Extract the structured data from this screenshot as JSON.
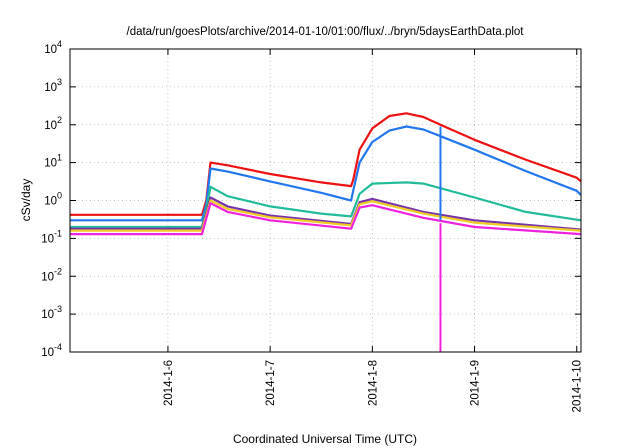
{
  "chart_data": {
    "type": "line",
    "title": "/data/run/goesPlots/archive/2014-01-10/01:00/flux/../bryn/5daysEarthData.plot",
    "xlabel": "Coordinated Universal Time (UTC)",
    "ylabel": "cSv/day",
    "y_scale": "log",
    "ylim": [
      0.0001,
      10000
    ],
    "y_ticks": [
      {
        "base": "10",
        "exp": "-4",
        "value": 0.0001
      },
      {
        "base": "10",
        "exp": "-3",
        "value": 0.001
      },
      {
        "base": "10",
        "exp": "-2",
        "value": 0.01
      },
      {
        "base": "10",
        "exp": "-1",
        "value": 0.1
      },
      {
        "base": "10",
        "exp": "0",
        "value": 1
      },
      {
        "base": "10",
        "exp": "1",
        "value": 10
      },
      {
        "base": "10",
        "exp": "2",
        "value": 100
      },
      {
        "base": "10",
        "exp": "3",
        "value": 1000
      },
      {
        "base": "10",
        "exp": "4",
        "value": 10000
      }
    ],
    "xlim": [
      "2014-01-05 01:00",
      "2014-01-10 01:00"
    ],
    "x_ticks": [
      {
        "label": "2014-1-6",
        "t": "2014-01-06 00:00"
      },
      {
        "label": "2014-1-7",
        "t": "2014-01-07 00:00"
      },
      {
        "label": "2014-1-8",
        "t": "2014-01-08 00:00"
      },
      {
        "label": "2014-1-9",
        "t": "2014-01-09 00:00"
      },
      {
        "label": "2014-1-10",
        "t": "2014-01-10 00:00"
      }
    ],
    "grid": true,
    "legend": "none",
    "series": [
      {
        "color": "#ee1111",
        "points": [
          [
            "2014-01-05 01:00",
            0.42
          ],
          [
            "2014-01-06 08:00",
            0.42
          ],
          [
            "2014-01-06 09:00",
            1.0
          ],
          [
            "2014-01-06 10:00",
            10.0
          ],
          [
            "2014-01-06 14:00",
            8.5
          ],
          [
            "2014-01-07 00:00",
            5.0
          ],
          [
            "2014-01-07 12:00",
            3.0
          ],
          [
            "2014-01-07 19:00",
            2.4
          ],
          [
            "2014-01-07 19:30",
            3.5
          ],
          [
            "2014-01-07 21:00",
            22.0
          ],
          [
            "2014-01-08 00:00",
            80.0
          ],
          [
            "2014-01-08 04:00",
            170.0
          ],
          [
            "2014-01-08 08:00",
            200.0
          ],
          [
            "2014-01-08 12:00",
            160.0
          ],
          [
            "2014-01-08 16:00",
            100.0
          ],
          [
            "2014-01-09 00:00",
            40.0
          ],
          [
            "2014-01-09 12:00",
            12.0
          ],
          [
            "2014-01-10 00:00",
            4.0
          ],
          [
            "2014-01-10 01:00",
            3.2
          ]
        ]
      },
      {
        "color": "#2277ee",
        "points": [
          [
            "2014-01-05 01:00",
            0.3
          ],
          [
            "2014-01-06 08:00",
            0.3
          ],
          [
            "2014-01-06 09:00",
            0.8
          ],
          [
            "2014-01-06 10:00",
            7.0
          ],
          [
            "2014-01-06 14:00",
            5.8
          ],
          [
            "2014-01-07 00:00",
            3.2
          ],
          [
            "2014-01-07 12:00",
            1.6
          ],
          [
            "2014-01-07 19:00",
            1.0
          ],
          [
            "2014-01-07 19:30",
            1.8
          ],
          [
            "2014-01-07 21:00",
            10.0
          ],
          [
            "2014-01-08 00:00",
            35.0
          ],
          [
            "2014-01-08 04:00",
            70.0
          ],
          [
            "2014-01-08 08:00",
            90.0
          ],
          [
            "2014-01-08 12:00",
            75.0
          ],
          [
            "2014-01-08 16:00",
            50.0
          ],
          [
            "2014-01-09 00:00",
            22.0
          ],
          [
            "2014-01-09 12:00",
            6.0
          ],
          [
            "2014-01-10 00:00",
            1.8
          ],
          [
            "2014-01-10 01:00",
            1.4
          ]
        ]
      },
      {
        "color": "#22bb99",
        "points": [
          [
            "2014-01-05 01:00",
            0.2
          ],
          [
            "2014-01-06 08:00",
            0.2
          ],
          [
            "2014-01-06 09:00",
            0.6
          ],
          [
            "2014-01-06 10:00",
            2.3
          ],
          [
            "2014-01-06 14:00",
            1.3
          ],
          [
            "2014-01-07 00:00",
            0.7
          ],
          [
            "2014-01-07 12:00",
            0.45
          ],
          [
            "2014-01-07 19:00",
            0.38
          ],
          [
            "2014-01-07 21:00",
            1.5
          ],
          [
            "2014-01-08 00:00",
            2.8
          ],
          [
            "2014-01-08 08:00",
            3.0
          ],
          [
            "2014-01-08 12:00",
            2.8
          ],
          [
            "2014-01-09 00:00",
            1.2
          ],
          [
            "2014-01-09 12:00",
            0.5
          ],
          [
            "2014-01-10 01:00",
            0.3
          ]
        ]
      },
      {
        "color": "#7733aa",
        "points": [
          [
            "2014-01-05 01:00",
            0.18
          ],
          [
            "2014-01-06 08:00",
            0.18
          ],
          [
            "2014-01-06 10:00",
            1.2
          ],
          [
            "2014-01-06 14:00",
            0.7
          ],
          [
            "2014-01-07 00:00",
            0.4
          ],
          [
            "2014-01-07 19:00",
            0.24
          ],
          [
            "2014-01-07 21:00",
            0.9
          ],
          [
            "2014-01-08 00:00",
            1.1
          ],
          [
            "2014-01-08 12:00",
            0.5
          ],
          [
            "2014-01-09 00:00",
            0.3
          ],
          [
            "2014-01-10 01:00",
            0.17
          ]
        ]
      },
      {
        "color": "#eecc22",
        "points": [
          [
            "2014-01-05 01:00",
            0.16
          ],
          [
            "2014-01-06 08:00",
            0.16
          ],
          [
            "2014-01-06 10:00",
            1.0
          ],
          [
            "2014-01-06 14:00",
            0.6
          ],
          [
            "2014-01-07 00:00",
            0.36
          ],
          [
            "2014-01-07 19:00",
            0.22
          ],
          [
            "2014-01-07 21:00",
            0.8
          ],
          [
            "2014-01-08 00:00",
            0.95
          ],
          [
            "2014-01-08 12:00",
            0.45
          ],
          [
            "2014-01-09 00:00",
            0.26
          ],
          [
            "2014-01-10 01:00",
            0.16
          ]
        ]
      },
      {
        "color": "#ee22dd",
        "points": [
          [
            "2014-01-05 01:00",
            0.13
          ],
          [
            "2014-01-06 08:00",
            0.13
          ],
          [
            "2014-01-06 10:00",
            0.85
          ],
          [
            "2014-01-06 14:00",
            0.5
          ],
          [
            "2014-01-07 00:00",
            0.3
          ],
          [
            "2014-01-07 19:00",
            0.18
          ],
          [
            "2014-01-07 21:00",
            0.65
          ],
          [
            "2014-01-08 00:00",
            0.75
          ],
          [
            "2014-01-08 12:00",
            0.35
          ],
          [
            "2014-01-09 00:00",
            0.2
          ],
          [
            "2014-01-10 01:00",
            0.13
          ]
        ]
      }
    ],
    "drops": [
      {
        "color": "#2277ee",
        "t": "2014-01-08 16:00",
        "from": 90,
        "to": 0.3
      },
      {
        "color": "#ee22dd",
        "t": "2014-01-08 16:00",
        "from": 0.25,
        "to": 0.0001
      }
    ]
  }
}
